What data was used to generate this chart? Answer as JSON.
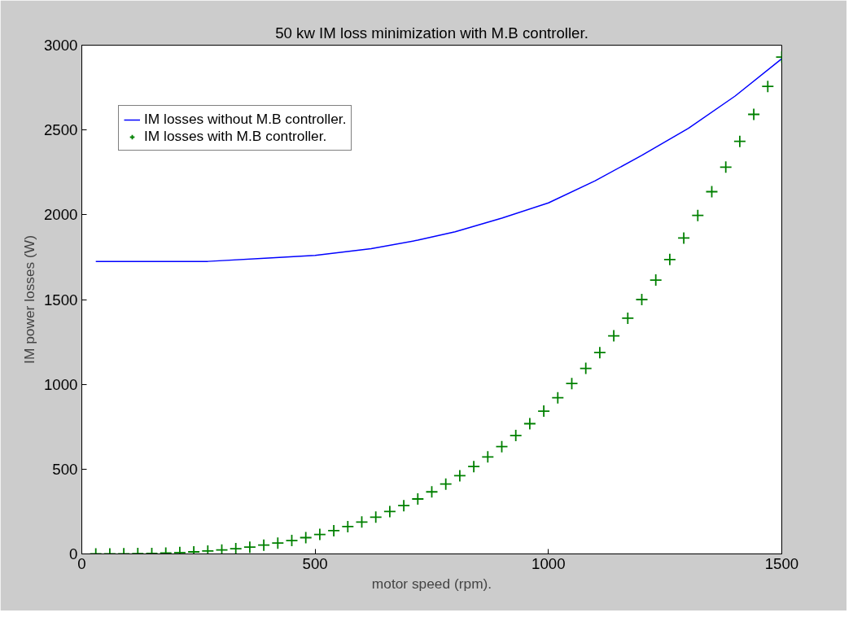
{
  "chart_data": {
    "type": "line",
    "title": "50 kw IM loss minimization with M.B controller.",
    "xlabel": "motor speed (rpm).",
    "ylabel": "IM power losses (W)",
    "xlim": [
      0,
      1500
    ],
    "ylim": [
      0,
      3000
    ],
    "xticks": [
      0,
      500,
      1000,
      1500
    ],
    "yticks": [
      0,
      500,
      1000,
      1500,
      2000,
      2500,
      3000
    ],
    "grid": false,
    "legend": "top left",
    "series": [
      {
        "name": "IM losses without M.B controller.",
        "color": "#0000ff",
        "line_style": "solid",
        "x": [
          30,
          150,
          270,
          400,
          500,
          620,
          720,
          800,
          900,
          1000,
          1100,
          1200,
          1300,
          1400,
          1500
        ],
        "values": [
          1725,
          1725,
          1725,
          1745,
          1760,
          1800,
          1850,
          1900,
          1980,
          2070,
          2200,
          2350,
          2510,
          2700,
          2920
        ]
      },
      {
        "name": "IM losses with M.B controller.",
        "type": "scatter",
        "marker": "cross",
        "color": "#008000",
        "x": [
          30,
          60,
          90,
          120,
          150,
          180,
          210,
          240,
          270,
          300,
          330,
          360,
          390,
          420,
          450,
          480,
          510,
          540,
          570,
          600,
          630,
          660,
          690,
          720,
          750,
          780,
          810,
          840,
          870,
          900,
          930,
          960,
          990,
          1020,
          1050,
          1080,
          1110,
          1140,
          1170,
          1200,
          1230,
          1260,
          1290,
          1320,
          1350,
          1380,
          1410,
          1440,
          1470,
          1500
        ],
        "values": [
          0,
          0,
          1,
          2,
          3,
          5,
          8,
          12,
          17,
          23,
          31,
          40,
          52,
          64,
          79,
          96,
          115,
          137,
          161,
          188,
          217,
          250,
          285,
          324,
          366,
          412,
          461,
          515,
          572,
          633,
          698,
          768,
          842,
          921,
          1005,
          1094,
          1187,
          1286,
          1390,
          1500,
          1615,
          1736,
          1863,
          1996,
          2136,
          2281,
          2433,
          2592,
          2757,
          2930
        ]
      }
    ]
  }
}
